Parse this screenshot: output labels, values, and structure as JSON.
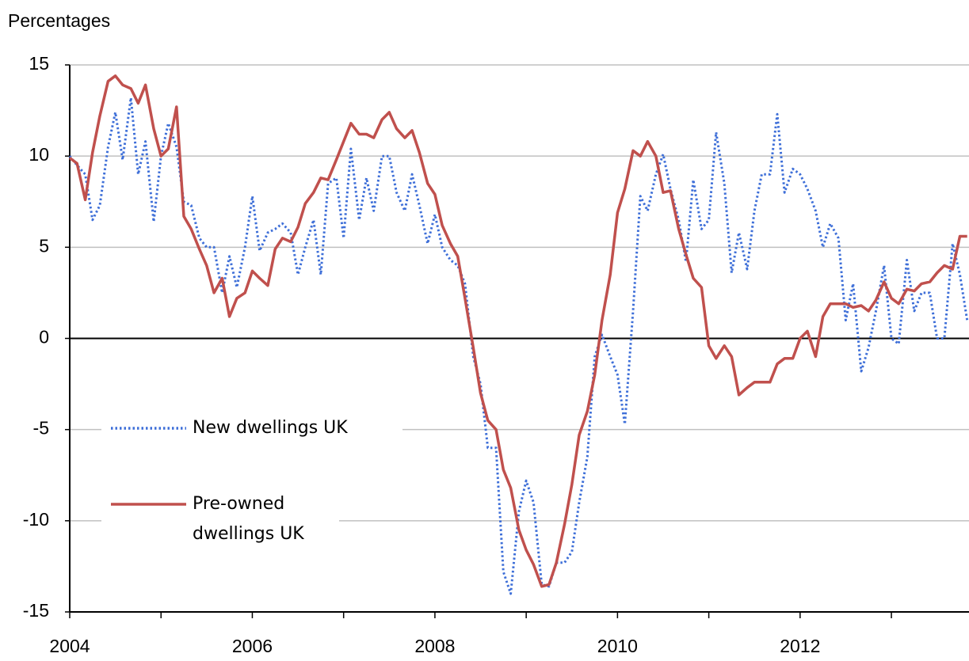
{
  "chart_data": {
    "type": "line",
    "y_label": "Percentages",
    "x": [
      2004,
      2004.08,
      2004.17,
      2004.25,
      2004.33,
      2004.42,
      2004.5,
      2004.58,
      2004.67,
      2004.75,
      2004.83,
      2004.92,
      2005,
      2005.08,
      2005.17,
      2005.25,
      2005.33,
      2005.42,
      2005.5,
      2005.58,
      2005.67,
      2005.75,
      2005.83,
      2005.92,
      2006,
      2006.08,
      2006.17,
      2006.25,
      2006.33,
      2006.42,
      2006.5,
      2006.58,
      2006.67,
      2006.75,
      2006.83,
      2006.92,
      2007,
      2007.08,
      2007.17,
      2007.25,
      2007.33,
      2007.42,
      2007.5,
      2007.58,
      2007.67,
      2007.75,
      2007.83,
      2007.92,
      2008,
      2008.08,
      2008.17,
      2008.25,
      2008.33,
      2008.42,
      2008.5,
      2008.58,
      2008.67,
      2008.75,
      2008.83,
      2008.92,
      2009,
      2009.08,
      2009.17,
      2009.25,
      2009.33,
      2009.42,
      2009.5,
      2009.58,
      2009.67,
      2009.75,
      2009.83,
      2009.92,
      2010,
      2010.08,
      2010.17,
      2010.25,
      2010.33,
      2010.42,
      2010.5,
      2010.58,
      2010.67,
      2010.75,
      2010.83,
      2010.92,
      2011,
      2011.08,
      2011.17,
      2011.25,
      2011.33,
      2011.42,
      2011.5,
      2011.58,
      2011.67,
      2011.75,
      2011.83,
      2011.92,
      2012,
      2012.08,
      2012.17,
      2012.25,
      2012.33,
      2012.42,
      2012.5,
      2012.58,
      2012.67,
      2012.75,
      2012.83,
      2012.92,
      2013,
      2013.08,
      2013.17,
      2013.25,
      2013.33,
      2013.42,
      2013.5,
      2013.58,
      2013.67,
      2013.75,
      2013.83
    ],
    "series": [
      {
        "name": "New dwellings UK",
        "color": "#3e6fd8",
        "dash": true,
        "values": [
          10.0,
          9.5,
          9.0,
          6.5,
          7.3,
          10.5,
          12.4,
          9.8,
          13.2,
          9.0,
          10.8,
          6.4,
          10.0,
          11.8,
          10.5,
          7.5,
          7.3,
          5.5,
          5.0,
          5.0,
          2.5,
          4.5,
          2.8,
          5.0,
          7.8,
          4.8,
          5.8,
          6.0,
          6.3,
          5.8,
          3.5,
          5.0,
          6.5,
          3.5,
          8.5,
          8.8,
          5.5,
          10.4,
          6.5,
          8.8,
          7.0,
          10.0,
          10.0,
          8.0,
          7.0,
          9.0,
          7.3,
          5.2,
          6.8,
          5.0,
          4.3,
          4.0,
          3.0,
          -1.0,
          -2.5,
          -6.0,
          -6.0,
          -12.8,
          -14.0,
          -9.5,
          -7.8,
          -9.0,
          -13.5,
          -13.6,
          -12.3,
          -12.3,
          -11.7,
          -9.0,
          -6.5,
          -1.0,
          0.2,
          -1.0,
          -2.0,
          -4.7,
          1.5,
          7.8,
          7.0,
          9.0,
          10.1,
          8.2,
          6.5,
          4.2,
          8.7,
          6.0,
          6.5,
          11.3,
          8.5,
          3.6,
          5.8,
          3.8,
          7.0,
          9.0,
          9.0,
          12.3,
          8.0,
          9.3,
          9.0,
          8.2,
          7.0,
          5.0,
          6.3,
          5.5,
          1.0,
          3.0,
          -1.8,
          -0.5,
          1.5,
          4.0,
          0.0,
          -0.3,
          4.3,
          1.5,
          2.5,
          2.5,
          0.0,
          0.0,
          5.2,
          3.5,
          1.0
        ]
      },
      {
        "name": "Pre-owned dwellings UK",
        "color": "#c0504d",
        "dash": false,
        "values": [
          9.9,
          9.6,
          7.6,
          10.2,
          12.2,
          14.1,
          14.4,
          13.9,
          13.7,
          12.9,
          13.9,
          11.5,
          10.0,
          10.4,
          12.7,
          6.7,
          6.0,
          4.9,
          4.0,
          2.5,
          3.3,
          1.2,
          2.2,
          2.5,
          3.7,
          3.3,
          2.9,
          4.9,
          5.5,
          5.3,
          6.1,
          7.4,
          8.0,
          8.8,
          8.7,
          9.8,
          10.8,
          11.8,
          11.2,
          11.2,
          11.0,
          12.0,
          12.4,
          11.5,
          11.0,
          11.4,
          10.2,
          8.5,
          7.9,
          6.2,
          5.2,
          4.5,
          2.2,
          -0.5,
          -3.0,
          -4.5,
          -5.0,
          -7.2,
          -8.2,
          -10.5,
          -11.6,
          -12.4,
          -13.6,
          -13.5,
          -12.3,
          -10.2,
          -8.0,
          -5.3,
          -4.0,
          -2.0,
          1.0,
          3.5,
          6.9,
          8.2,
          10.3,
          10.0,
          10.8,
          10.0,
          8.0,
          8.1,
          6.0,
          4.6,
          3.3,
          2.8,
          -0.4,
          -1.1,
          -0.4,
          -1.0,
          -3.1,
          -2.7,
          -2.4,
          -2.4,
          -2.4,
          -1.4,
          -1.1,
          -1.1,
          0.0,
          0.4,
          -1.0,
          1.2,
          1.9,
          1.9,
          1.9,
          1.7,
          1.8,
          1.5,
          2.1,
          3.1,
          2.2,
          1.9,
          2.7,
          2.6,
          3.0,
          3.1,
          3.6,
          4.0,
          3.8,
          5.6,
          5.6
        ]
      }
    ],
    "xlim": [
      2004,
      2013.85
    ],
    "xticks": [
      2004,
      2006,
      2008,
      2010,
      2012
    ],
    "ylim": [
      -15,
      15
    ],
    "yticks": [
      -15,
      -10,
      -5,
      0,
      5,
      10,
      15
    ],
    "grid": true
  }
}
